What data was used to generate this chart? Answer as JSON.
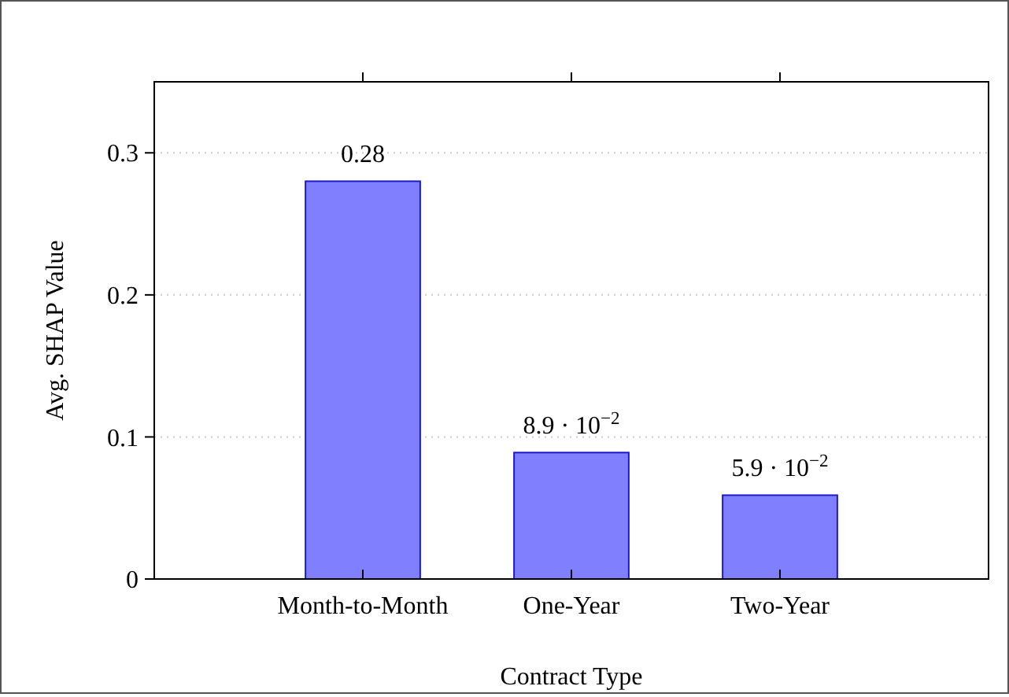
{
  "chart_data": {
    "type": "bar",
    "xlabel": "Contract Type",
    "ylabel": "Avg. SHAP Value",
    "categories": [
      "Month-to-Month",
      "One-Year",
      "Two-Year"
    ],
    "values": [
      0.28,
      0.089,
      0.059
    ],
    "value_labels": [
      "0.28",
      "8.9 · 10$^{−2}$",
      "5.9 · 10$^{−2}$"
    ],
    "color": "#8080ff",
    "ylim": [
      0,
      0.35
    ],
    "yticks": [
      0,
      0.1,
      0.2,
      0.3
    ],
    "grid": "y"
  }
}
